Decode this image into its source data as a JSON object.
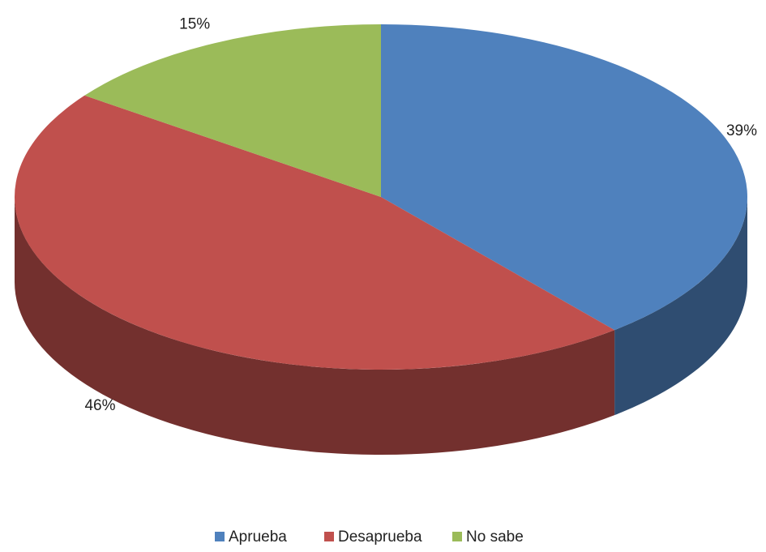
{
  "chart_data": {
    "type": "pie",
    "categories": [
      "Aprueba",
      "Desaprueba",
      "No sabe"
    ],
    "values": [
      39,
      46,
      15
    ],
    "value_labels": [
      "39%",
      "46%",
      "15%"
    ],
    "colors": [
      "#4f81bd",
      "#c0504d",
      "#9bbb59"
    ],
    "legend": "bottom"
  }
}
